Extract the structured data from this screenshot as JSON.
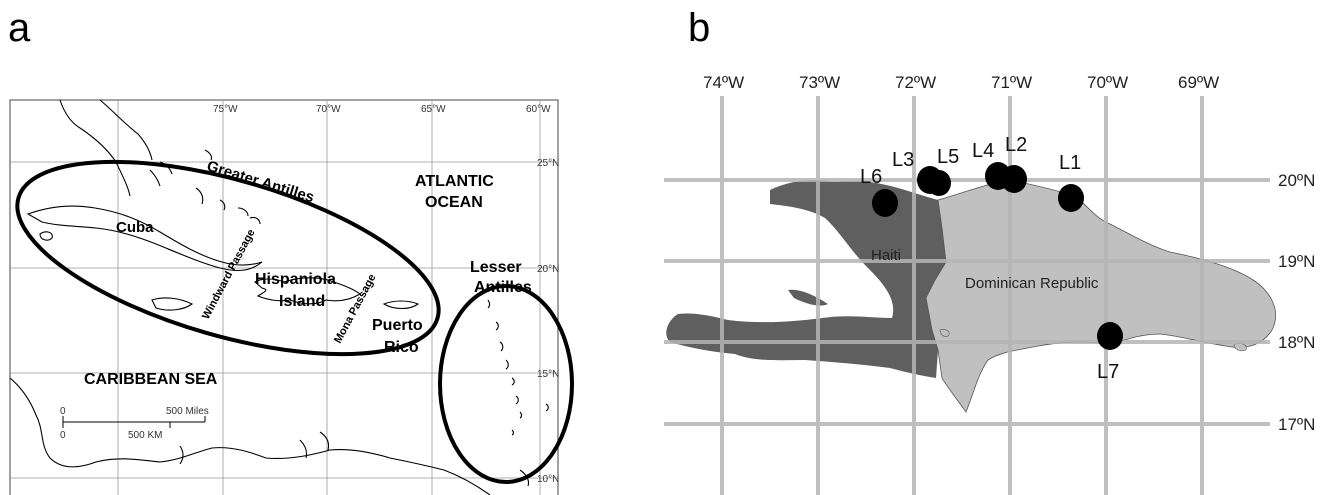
{
  "panels": {
    "a_label": "a",
    "b_label": "b"
  },
  "map_a": {
    "lon_ticks": [
      "75°W",
      "70°W",
      "65°W",
      "60°W"
    ],
    "lat_ticks": [
      "25°N",
      "20°N",
      "15°N",
      "10°N"
    ],
    "greater_antilles": "Greater Antilles",
    "atlantic_1": "ATLANTIC",
    "atlantic_2": "OCEAN",
    "cuba": "Cuba",
    "windward": "Windward Passage",
    "hispaniola_1": "Hispaniola",
    "hispaniola_2": "Island",
    "mona": "Mona Passage",
    "puerto_1": "Puerto",
    "puerto_2": "Rico",
    "lesser_1": "Lesser",
    "lesser_2": "Antilles",
    "caribbean": "CARIBBEAN SEA",
    "scale_miles": "500 Miles",
    "scale_km": "500 KM",
    "scale_zero_top": "0",
    "scale_zero_bottom": "0"
  },
  "map_b": {
    "lon_ticks": [
      "74ºW",
      "73ºW",
      "72ºW",
      "71ºW",
      "70ºW",
      "69ºW"
    ],
    "lat_ticks": [
      "20ºN",
      "19ºN",
      "18ºN",
      "17ºN"
    ],
    "haiti": "Haiti",
    "dominican_republic": "Dominican Republic",
    "sites": [
      "L6",
      "L3",
      "L5",
      "L4",
      "L2",
      "L1",
      "L7"
    ],
    "colors": {
      "haiti": "#5f5f5f",
      "dominican_republic": "#c0c0c0",
      "grid": "#b5b5b5"
    }
  }
}
